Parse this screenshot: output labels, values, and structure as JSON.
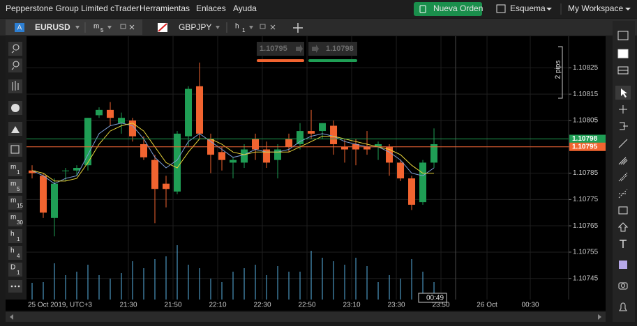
{
  "menu": {
    "brand": "Pepperstone Group Limited cTrader",
    "items": [
      "Herramientas",
      "Enlaces",
      "Ayuda"
    ]
  },
  "header_actions": {
    "new_order": "Nueva Orden",
    "layout": "Esquema",
    "workspace": "My Workspace"
  },
  "tabs": [
    {
      "badge": "A",
      "symbol": "EURUSD",
      "unit": "m",
      "period": "5"
    },
    {
      "symbol": "GBPJPY",
      "unit": "h",
      "period": "1"
    }
  ],
  "timeframes": [
    {
      "unit": "m",
      "period": "1"
    },
    {
      "unit": "m",
      "period": "5"
    },
    {
      "unit": "m",
      "period": "15"
    },
    {
      "unit": "m",
      "period": "30"
    },
    {
      "unit": "h",
      "period": "1"
    },
    {
      "unit": "h",
      "period": "4"
    },
    {
      "unit": "D",
      "period": "1"
    }
  ],
  "chart_data": {
    "type": "candlestick",
    "up_color": "#1f9e55",
    "down_color": "#f26430",
    "volume_color": "#5ab4e6",
    "open": [
      1.10786,
      1.10784,
      1.10768,
      1.10786,
      1.10786,
      1.10788,
      1.10807,
      1.10809,
      1.10804,
      1.10805,
      1.10796,
      1.1079,
      1.10781,
      1.10778,
      1.10799,
      1.10818,
      1.10798,
      1.10793,
      1.10789,
      1.10789,
      1.10798,
      1.10794,
      1.1079,
      1.10798,
      1.10796,
      1.10801,
      1.10801,
      1.10803,
      1.10795,
      1.10796,
      1.10795,
      1.10795,
      1.10795,
      1.10789,
      1.10783,
      1.10774,
      1.10789
    ],
    "high": [
      1.10788,
      1.10785,
      1.10783,
      1.10787,
      1.10788,
      1.10806,
      1.1081,
      1.10812,
      1.10808,
      1.10806,
      1.10799,
      1.10792,
      1.10784,
      1.10801,
      1.10818,
      1.10827,
      1.108,
      1.10795,
      1.10791,
      1.10796,
      1.108,
      1.10797,
      1.10796,
      1.108,
      1.10804,
      1.10809,
      1.10804,
      1.10805,
      1.10798,
      1.10798,
      1.10801,
      1.10797,
      1.10796,
      1.1079,
      1.10784,
      1.1079,
      1.10802
    ],
    "low": [
      1.10783,
      1.10768,
      1.10761,
      1.10782,
      1.10784,
      1.10786,
      1.10806,
      1.10803,
      1.108,
      1.10797,
      1.1079,
      1.10766,
      1.10772,
      1.10777,
      1.10795,
      1.10798,
      1.10785,
      1.10786,
      1.10783,
      1.10787,
      1.1079,
      1.10787,
      1.10783,
      1.10793,
      1.10794,
      1.10798,
      1.10798,
      1.10792,
      1.10789,
      1.10788,
      1.10792,
      1.1079,
      1.10784,
      1.10782,
      1.10771,
      1.10773,
      1.10787
    ],
    "close": [
      1.10785,
      1.1077,
      1.10781,
      1.10786,
      1.10787,
      1.10806,
      1.10809,
      1.10806,
      1.10806,
      1.10799,
      1.10791,
      1.10779,
      1.10779,
      1.108,
      1.10817,
      1.108,
      1.10792,
      1.1079,
      1.1079,
      1.10794,
      1.10794,
      1.10789,
      1.10794,
      1.10795,
      1.10801,
      1.108,
      1.10804,
      1.10796,
      1.10794,
      1.10794,
      1.10794,
      1.10796,
      1.10789,
      1.10783,
      1.10773,
      1.10789,
      1.10796
    ],
    "volume": [
      24,
      25,
      52,
      35,
      40,
      50,
      35,
      30,
      38,
      55,
      45,
      58,
      62,
      78,
      50,
      45,
      30,
      25,
      40,
      45,
      50,
      35,
      48,
      40,
      40,
      70,
      60,
      55,
      50,
      60,
      48,
      25,
      35,
      30,
      58,
      40,
      25
    ],
    "moving_averages": [
      {
        "color": "#7e9fd6",
        "values": [
          1.10786,
          1.10784,
          1.10781,
          1.10783,
          1.10784,
          1.10792,
          1.108,
          1.10803,
          1.10804,
          1.10803,
          1.10798,
          1.10791,
          1.10787,
          1.1079,
          1.10797,
          1.108,
          1.10797,
          1.10794,
          1.10791,
          1.10792,
          1.10794,
          1.10793,
          1.10793,
          1.10794,
          1.10797,
          1.10799,
          1.108,
          1.10799,
          1.10797,
          1.10796,
          1.10795,
          1.10795,
          1.10793,
          1.1079,
          1.10785,
          1.10784,
          1.10787
        ]
      },
      {
        "color": "#e8d43a",
        "values": [
          1.10786,
          1.10785,
          1.10782,
          1.10782,
          1.10783,
          1.10789,
          1.10796,
          1.10801,
          1.10803,
          1.10804,
          1.10801,
          1.10795,
          1.10789,
          1.10787,
          1.10793,
          1.10798,
          1.10798,
          1.10796,
          1.10793,
          1.10792,
          1.10793,
          1.10793,
          1.10793,
          1.10793,
          1.10795,
          1.10797,
          1.10799,
          1.10799,
          1.10798,
          1.10797,
          1.10796,
          1.10795,
          1.10794,
          1.10792,
          1.10788,
          1.10785,
          1.10785
        ]
      }
    ],
    "ask": 1.10798,
    "bid": 1.10795,
    "ruler_label": "2 pips",
    "countdown": "00:49",
    "ylim": [
      1.10737,
      1.10837
    ],
    "yticks": [
      1.10745,
      1.10755,
      1.10765,
      1.10775,
      1.10785,
      1.10795,
      1.10805,
      1.10815,
      1.10825
    ],
    "ytick_labels_hidden": [
      5
    ],
    "xlim": [
      -0.5,
      48.06
    ],
    "xticks": [
      {
        "value": -0.5,
        "label": "25 Oct 2019, UTC+3"
      },
      {
        "value": 8.625,
        "label": "21:30"
      },
      {
        "value": 12.625,
        "label": "21:50"
      },
      {
        "value": 16.625,
        "label": "22:10"
      },
      {
        "value": 20.625,
        "label": "22:30"
      },
      {
        "value": 24.625,
        "label": "22:50"
      },
      {
        "value": 28.625,
        "label": "23:10"
      },
      {
        "value": 32.625,
        "label": "23:30"
      },
      {
        "value": 36.625,
        "label": "23:50"
      },
      {
        "value": 40.75,
        "label": "26 Oct"
      },
      {
        "value": 44.625,
        "label": "00:30"
      }
    ],
    "grid": true
  }
}
